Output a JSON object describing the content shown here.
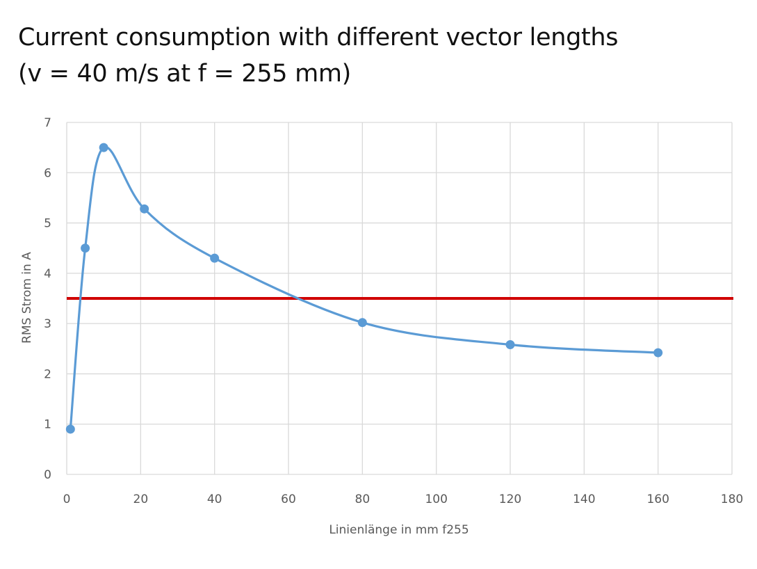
{
  "title": {
    "line1": "Current consumption with different vector lengths",
    "line2": "(v = 40 m/s at f = 255 mm)"
  },
  "chart_data": {
    "type": "line",
    "xlabel": "Linienlänge in mm f255",
    "ylabel": "RMS Strom in A",
    "xlim": [
      0,
      180
    ],
    "ylim": [
      0,
      7
    ],
    "xticks": [
      0,
      20,
      40,
      60,
      80,
      100,
      120,
      140,
      160,
      180
    ],
    "yticks": [
      0,
      1,
      2,
      3,
      4,
      5,
      6,
      7
    ],
    "grid": true,
    "smooth": true,
    "series": [
      {
        "x": [
          1,
          5,
          10,
          21,
          40,
          80,
          120,
          160
        ],
        "y": [
          0.9,
          4.5,
          6.5,
          5.28,
          4.3,
          3.02,
          2.58,
          2.42
        ],
        "color": "#5b9bd5",
        "marker": "circle"
      }
    ],
    "reference_line": {
      "y": 3.5,
      "color": "#d00000"
    }
  }
}
